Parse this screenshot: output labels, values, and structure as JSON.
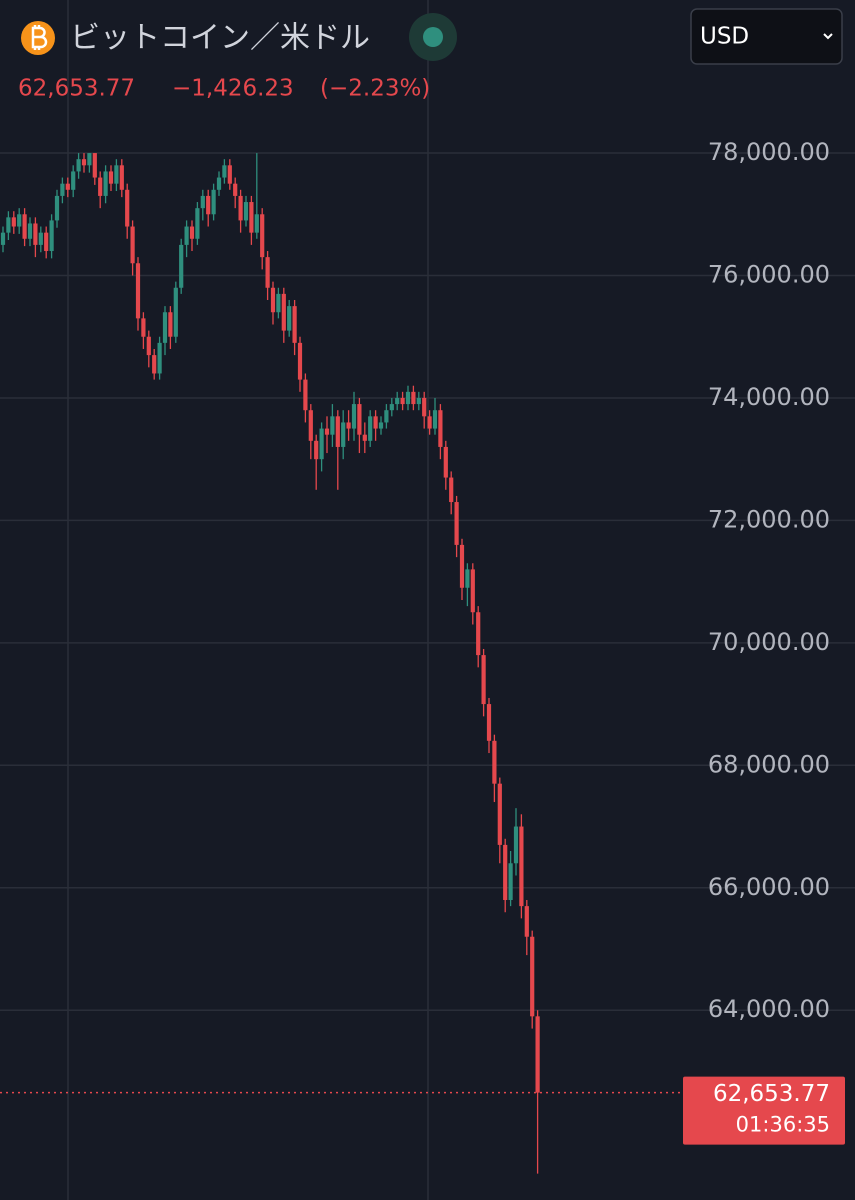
{
  "header": {
    "symbol": "ビットコイン／米ドル",
    "price": "62,653.77",
    "change": "−1,426.23",
    "change_pct": "(−2.23%)",
    "currency": "USD"
  },
  "chart_data": {
    "type": "candlestick",
    "up_color": "#2f8f7e",
    "down_color": "#e5484d",
    "ylim": [
      60900,
      80500
    ],
    "yticks": [
      {
        "value": 64000,
        "label": "64,000.00"
      },
      {
        "value": 66000,
        "label": "66,000.00"
      },
      {
        "value": 68000,
        "label": "68,000.00"
      },
      {
        "value": 70000,
        "label": "70,000.00"
      },
      {
        "value": 72000,
        "label": "72,000.00"
      },
      {
        "value": 74000,
        "label": "74,000.00"
      },
      {
        "value": 76000,
        "label": "76,000.00"
      },
      {
        "value": 78000,
        "label": "78,000.00"
      }
    ],
    "grid": true,
    "last_price": {
      "value": 62653.77,
      "label": "62,653.77"
    },
    "countdown": "01:36:35",
    "candles": {
      "open": [
        76500,
        76700,
        76950,
        76800,
        77000,
        76600,
        76850,
        76500,
        76700,
        76400,
        76900,
        77300,
        77500,
        77400,
        77700,
        77900,
        77800,
        78000,
        77600,
        77300,
        77700,
        77500,
        77800,
        77400,
        76800,
        76200,
        75300,
        75000,
        74700,
        74400,
        74900,
        75400,
        75000,
        75800,
        76500,
        76800,
        76600,
        77100,
        77300,
        77000,
        77400,
        77600,
        77800,
        77500,
        77300,
        76900,
        77200,
        76700,
        77000,
        76300,
        75800,
        75400,
        75700,
        75100,
        75500,
        74900,
        74300,
        73800,
        73300,
        73000,
        73500,
        73400,
        73700,
        73200,
        73600,
        73500,
        73900,
        73400,
        73300,
        73700,
        73500,
        73600,
        73800,
        73900,
        74000,
        73900,
        74100,
        73900,
        74000,
        73700,
        73500,
        73800,
        73200,
        72700,
        72300,
        71600,
        70900,
        71200,
        70500,
        69800,
        69000,
        68400,
        67700,
        66700,
        65800,
        66400,
        67000,
        65700,
        65200,
        63900
      ],
      "high": [
        76800,
        77050,
        77050,
        77100,
        77100,
        76950,
        76950,
        76800,
        76800,
        77000,
        77400,
        77600,
        77600,
        77800,
        78000,
        78000,
        78000,
        78000,
        77700,
        77800,
        77800,
        77900,
        77900,
        77500,
        76900,
        76300,
        75400,
        75100,
        74800,
        75000,
        75500,
        75500,
        75900,
        76600,
        76900,
        76900,
        77200,
        77400,
        77400,
        77500,
        77700,
        77900,
        77900,
        77600,
        77400,
        77300,
        77300,
        78000,
        77100,
        76400,
        75900,
        75800,
        75800,
        75600,
        75600,
        75000,
        74400,
        73900,
        73400,
        73600,
        73700,
        73900,
        73800,
        73800,
        73800,
        74100,
        74000,
        73600,
        73800,
        73800,
        73700,
        73900,
        74000,
        74100,
        74100,
        74200,
        74200,
        74100,
        74100,
        73800,
        74000,
        73900,
        73300,
        72800,
        72400,
        71700,
        71300,
        71300,
        70600,
        69900,
        69100,
        68500,
        67800,
        66800,
        66600,
        67300,
        67200,
        65800,
        65300,
        64000
      ],
      "low": [
        76380,
        76580,
        76680,
        76680,
        76480,
        76480,
        76300,
        76380,
        76280,
        76280,
        76780,
        77180,
        77280,
        77280,
        77580,
        77680,
        77680,
        77480,
        77100,
        77180,
        77380,
        77380,
        77280,
        76600,
        76000,
        75100,
        74800,
        74500,
        74300,
        74300,
        74700,
        74800,
        74900,
        75700,
        76300,
        76400,
        76500,
        76900,
        76800,
        76900,
        77300,
        77500,
        77400,
        77100,
        76700,
        76800,
        76500,
        76600,
        76100,
        75600,
        75200,
        75300,
        74900,
        75000,
        74700,
        74100,
        73600,
        73000,
        72500,
        72800,
        73100,
        73200,
        72500,
        73000,
        73300,
        73300,
        73100,
        73100,
        73200,
        73300,
        73400,
        73500,
        73700,
        73800,
        73800,
        73800,
        73800,
        73800,
        73500,
        73400,
        73400,
        73000,
        72500,
        72100,
        71400,
        70700,
        70600,
        70300,
        69600,
        68800,
        68200,
        67400,
        66400,
        65600,
        65700,
        66200,
        65500,
        64900,
        63700,
        61330
      ],
      "close": [
        76700,
        76950,
        76800,
        77000,
        76600,
        76850,
        76500,
        76700,
        76400,
        76900,
        77300,
        77500,
        77400,
        77700,
        77900,
        77800,
        78000,
        77600,
        77300,
        77700,
        77500,
        77800,
        77400,
        76800,
        76200,
        75300,
        75000,
        74700,
        74400,
        74900,
        75400,
        75000,
        75800,
        76500,
        76800,
        76600,
        77100,
        77300,
        77000,
        77400,
        77600,
        77800,
        77500,
        77300,
        76900,
        77200,
        76700,
        77000,
        76300,
        75800,
        75400,
        75700,
        75100,
        75500,
        74900,
        74300,
        73800,
        73300,
        73000,
        73500,
        73400,
        73700,
        73200,
        73600,
        73500,
        73900,
        73400,
        73300,
        73700,
        73500,
        73600,
        73800,
        73900,
        74000,
        73900,
        74100,
        73900,
        74000,
        73700,
        73500,
        73800,
        73200,
        72700,
        72300,
        71600,
        70900,
        71200,
        70500,
        69800,
        69000,
        68400,
        67700,
        66700,
        65800,
        66400,
        67000,
        65700,
        65200,
        63900,
        62653.77
      ]
    }
  }
}
